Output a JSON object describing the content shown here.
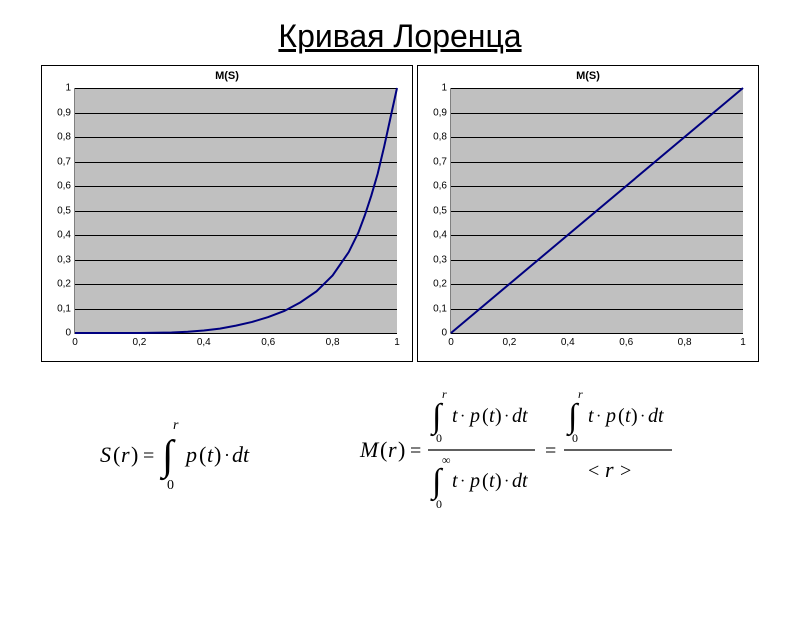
{
  "title": "Кривая Лоренца",
  "left_chart": {
    "type": "line",
    "title": "M(S)",
    "title_fontsize": 11,
    "xlim": [
      0,
      1
    ],
    "ylim": [
      0,
      1
    ],
    "xtick_step": 0.2,
    "ytick_step": 0.1,
    "xticks": [
      "0",
      "0,2",
      "0,4",
      "0,6",
      "0,8",
      "1"
    ],
    "yticks": [
      "0",
      "0,1",
      "0,2",
      "0,3",
      "0,4",
      "0,5",
      "0,6",
      "0,7",
      "0,8",
      "0,9",
      "1"
    ],
    "background_color": "#c0c0c0",
    "grid_color": "#000000",
    "line_color": "#000080",
    "line_width": 2,
    "series": [
      {
        "x": 0.0,
        "y": 0.0
      },
      {
        "x": 0.1,
        "y": 0.0
      },
      {
        "x": 0.2,
        "y": 0.0
      },
      {
        "x": 0.3,
        "y": 0.002
      },
      {
        "x": 0.35,
        "y": 0.005
      },
      {
        "x": 0.4,
        "y": 0.01
      },
      {
        "x": 0.45,
        "y": 0.018
      },
      {
        "x": 0.5,
        "y": 0.03
      },
      {
        "x": 0.55,
        "y": 0.045
      },
      {
        "x": 0.6,
        "y": 0.065
      },
      {
        "x": 0.65,
        "y": 0.09
      },
      {
        "x": 0.7,
        "y": 0.125
      },
      {
        "x": 0.75,
        "y": 0.17
      },
      {
        "x": 0.8,
        "y": 0.235
      },
      {
        "x": 0.85,
        "y": 0.33
      },
      {
        "x": 0.88,
        "y": 0.41
      },
      {
        "x": 0.9,
        "y": 0.48
      },
      {
        "x": 0.92,
        "y": 0.56
      },
      {
        "x": 0.94,
        "y": 0.65
      },
      {
        "x": 0.96,
        "y": 0.76
      },
      {
        "x": 0.98,
        "y": 0.88
      },
      {
        "x": 1.0,
        "y": 1.0
      }
    ]
  },
  "right_chart": {
    "type": "line",
    "title": "M(S)",
    "title_fontsize": 11,
    "xlim": [
      0,
      1
    ],
    "ylim": [
      0,
      1
    ],
    "xtick_step": 0.2,
    "ytick_step": 0.1,
    "xticks": [
      "0",
      "0,2",
      "0,4",
      "0,6",
      "0,8",
      "1"
    ],
    "yticks": [
      "0",
      "0,1",
      "0,2",
      "0,3",
      "0,4",
      "0,5",
      "0,6",
      "0,7",
      "0,8",
      "0,9",
      "1"
    ],
    "background_color": "#c0c0c0",
    "grid_color": "#000000",
    "line_color": "#000080",
    "line_width": 2,
    "series": [
      {
        "x": 0.0,
        "y": 0.0
      },
      {
        "x": 1.0,
        "y": 1.0
      }
    ]
  },
  "formula_left": {
    "display": "S(r) = ∫₀ʳ p(t)·dt",
    "fontsize": 20
  },
  "formula_right": {
    "display": "M(r) = ∫₀ʳ t·p(t)·dt / ∫₀∞ t·p(t)·dt = ∫₀ʳ t·p(t)·dt / <r>",
    "fontsize": 20
  }
}
